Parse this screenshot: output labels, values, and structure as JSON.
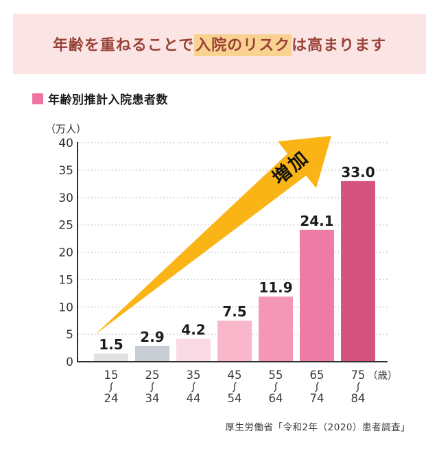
{
  "banner": {
    "title_prefix": "年齢を重ねることで",
    "title_highlight": "入院のリスク",
    "title_suffix": "は高まります",
    "bg_color": "#FBE5E4",
    "text_color": "#9A4238",
    "highlight_color": "#F9D190"
  },
  "legend": {
    "label": "年齢別推計入院患者数",
    "marker_color": "#EF74A3"
  },
  "chart_data": {
    "type": "bar",
    "title": "年齢別推計入院患者数",
    "unit_label": "（万人）",
    "ylabel": "万人",
    "ylim": [
      0,
      40
    ],
    "ytick_step": 5,
    "grid": true,
    "categories": [
      "15〜24",
      "25〜34",
      "35〜44",
      "45〜54",
      "55〜64",
      "65〜74",
      "75〜84"
    ],
    "category_ranges": [
      {
        "from": "15",
        "to": "24"
      },
      {
        "from": "25",
        "to": "34"
      },
      {
        "from": "35",
        "to": "44"
      },
      {
        "from": "45",
        "to": "54"
      },
      {
        "from": "55",
        "to": "64"
      },
      {
        "from": "65",
        "to": "74"
      },
      {
        "from": "75",
        "to": "84"
      }
    ],
    "age_unit_suffix": "（歳）",
    "range_separator": "〜",
    "values": [
      1.5,
      2.9,
      4.2,
      7.5,
      11.9,
      24.1,
      33.0
    ],
    "bar_colors": [
      "#E0E2E4",
      "#C8CCD3",
      "#FADAE4",
      "#F8B7CB",
      "#F497B7",
      "#EE7BA6",
      "#D5537F"
    ],
    "annotation": {
      "label": "増加",
      "arrow_color": "#FBB415",
      "text_color": "#111111"
    }
  },
  "source": "厚生労働省「令和2年（2020）患者調査」"
}
